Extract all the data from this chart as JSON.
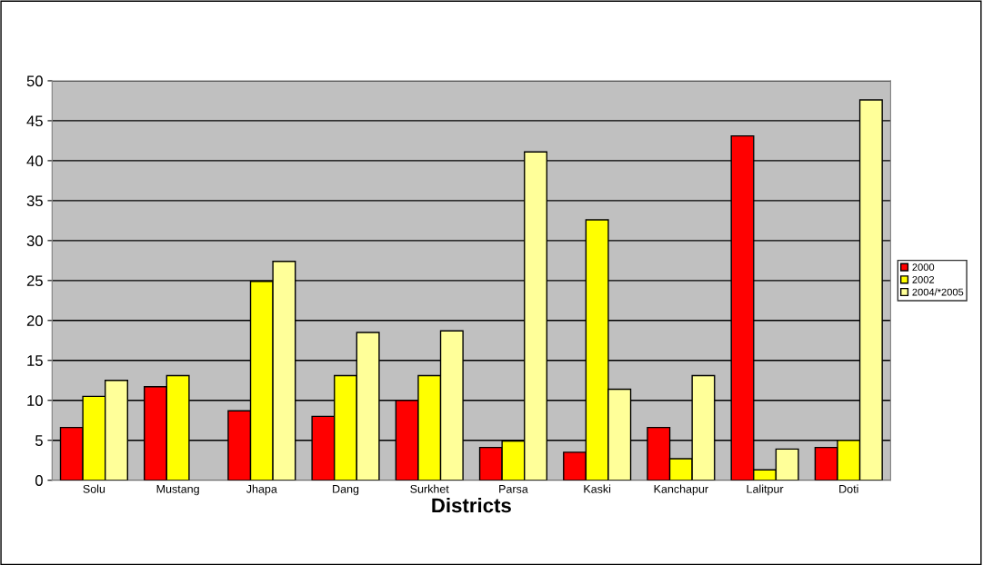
{
  "chart_data": {
    "type": "bar",
    "xlabel": "Districts",
    "categories": [
      "Solu",
      "Mustang",
      "Jhapa",
      "Dang",
      "Surkhet",
      "Parsa",
      "Kaski",
      "Kanchapur",
      "Lalitpur",
      "Doti"
    ],
    "series": [
      {
        "name": "2000",
        "color": "#ff0000",
        "values": [
          6.6,
          11.7,
          8.7,
          8.0,
          10.0,
          4.1,
          3.5,
          6.6,
          43.1,
          4.1
        ]
      },
      {
        "name": "2002",
        "color": "#ffff00",
        "values": [
          10.5,
          13.1,
          24.9,
          13.1,
          13.1,
          4.9,
          32.6,
          2.7,
          1.3,
          5.0
        ]
      },
      {
        "name": "2004/*2005",
        "color": "#ffff99",
        "values": [
          12.5,
          null,
          27.4,
          18.5,
          18.7,
          41.1,
          11.4,
          13.1,
          3.9,
          47.6
        ]
      }
    ],
    "ylim": [
      0,
      50
    ],
    "yticks": [
      0,
      5,
      10,
      15,
      20,
      25,
      30,
      35,
      40,
      45,
      50
    ],
    "grid": "y",
    "legend": "right"
  }
}
